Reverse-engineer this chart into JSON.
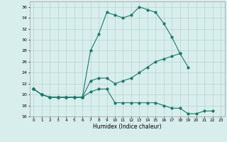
{
  "xlabel": "Humidex (Indice chaleur)",
  "xlim": [
    -0.5,
    23.5
  ],
  "ylim": [
    16,
    37
  ],
  "yticks": [
    16,
    18,
    20,
    22,
    24,
    26,
    28,
    30,
    32,
    34,
    36
  ],
  "xticks": [
    0,
    1,
    2,
    3,
    4,
    5,
    6,
    7,
    8,
    9,
    10,
    11,
    12,
    13,
    14,
    15,
    16,
    17,
    18,
    19,
    20,
    21,
    22,
    23
  ],
  "background_color": "#d8eeed",
  "grid_color": "#aacccc",
  "line_color": "#1a7a6a",
  "line1_x": [
    0,
    1,
    2,
    3,
    4,
    5,
    6,
    7,
    8,
    9,
    10,
    11,
    12,
    13,
    14,
    15,
    16,
    17,
    18
  ],
  "line1_y": [
    21,
    20,
    19.5,
    19.5,
    19.5,
    19.5,
    19.5,
    28,
    31,
    35,
    34.5,
    34,
    34.5,
    36,
    35.5,
    35,
    33,
    30.5,
    27.5
  ],
  "line2_x": [
    0,
    1,
    2,
    3,
    4,
    5,
    6,
    7,
    8,
    9,
    10,
    11,
    12,
    13,
    14,
    15,
    16,
    17,
    18,
    19
  ],
  "line2_y": [
    21,
    20,
    19.5,
    19.5,
    19.5,
    19.5,
    19.5,
    22.5,
    23,
    23,
    22,
    22.5,
    23,
    24,
    25,
    26,
    26.5,
    27,
    27.5,
    25
  ],
  "line3_x": [
    0,
    1,
    2,
    3,
    4,
    5,
    6,
    7,
    8,
    9,
    10,
    11,
    12,
    13,
    14,
    15,
    16,
    17,
    18,
    19,
    20,
    21,
    22
  ],
  "line3_y": [
    21,
    20,
    19.5,
    19.5,
    19.5,
    19.5,
    19.5,
    20.5,
    21,
    21,
    18.5,
    18.5,
    18.5,
    18.5,
    18.5,
    18.5,
    18,
    17.5,
    17.5,
    16.5,
    16.5,
    17,
    17
  ]
}
